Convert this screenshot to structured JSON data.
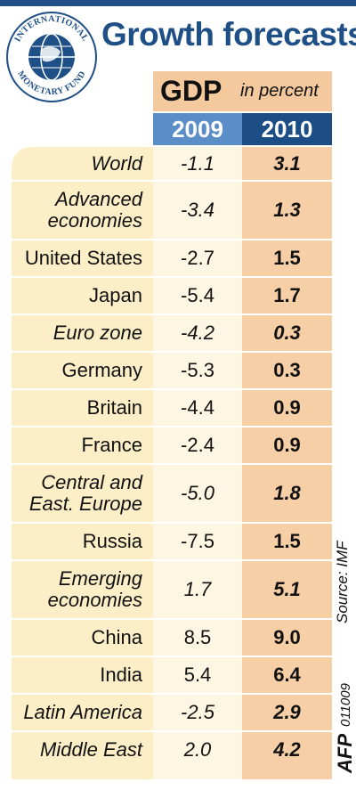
{
  "title": "Growth forecasts",
  "logo": {
    "icon": "imf-seal-icon",
    "text_top": "INTERNATIONAL",
    "text_bottom": "MONETARY FUND"
  },
  "header": {
    "gdp": "GDP",
    "unit": "in percent",
    "col_2009": "2009",
    "col_2010": "2010"
  },
  "chart_data": {
    "type": "table",
    "title": "Growth forecasts",
    "subtitle": "GDP in percent",
    "columns": [
      "2009",
      "2010"
    ],
    "rows": [
      {
        "name": "World",
        "v2009": "-1.1",
        "v2010": "3.1",
        "italic": true
      },
      {
        "name": "Advanced economies",
        "v2009": "-3.4",
        "v2010": "1.3",
        "italic": true
      },
      {
        "name": "United States",
        "v2009": "-2.7",
        "v2010": "1.5",
        "italic": false
      },
      {
        "name": "Japan",
        "v2009": "-5.4",
        "v2010": "1.7",
        "italic": false
      },
      {
        "name": "Euro zone",
        "v2009": "-4.2",
        "v2010": "0.3",
        "italic": true
      },
      {
        "name": "Germany",
        "v2009": "-5.3",
        "v2010": "0.3",
        "italic": false
      },
      {
        "name": "Britain",
        "v2009": "-4.4",
        "v2010": "0.9",
        "italic": false
      },
      {
        "name": "France",
        "v2009": "-2.4",
        "v2010": "0.9",
        "italic": false
      },
      {
        "name": "Central and East. Europe",
        "v2009": "-5.0",
        "v2010": "1.8",
        "italic": true
      },
      {
        "name": "Russia",
        "v2009": "-7.5",
        "v2010": "1.5",
        "italic": false
      },
      {
        "name": "Emerging economies",
        "v2009": "1.7",
        "v2010": "5.1",
        "italic": true
      },
      {
        "name": "China",
        "v2009": "8.5",
        "v2010": "9.0",
        "italic": false
      },
      {
        "name": "India",
        "v2009": "5.4",
        "v2010": "6.4",
        "italic": false
      },
      {
        "name": "Latin America",
        "v2009": "-2.5",
        "v2010": "2.9",
        "italic": true
      },
      {
        "name": "Middle East",
        "v2009": "2.0",
        "v2010": "4.2",
        "italic": true
      }
    ]
  },
  "footer": {
    "source": "Source: IMF",
    "agency": "AFP",
    "code": "011009"
  },
  "colors": {
    "title": "#1f4f87",
    "col_2009_header": "#5b8ec7",
    "col_2010_header": "#1c4d85",
    "panel": "#fcefc8",
    "col_2010_fill": "#f6cfa6",
    "gdp_box": "#f4c99d"
  }
}
